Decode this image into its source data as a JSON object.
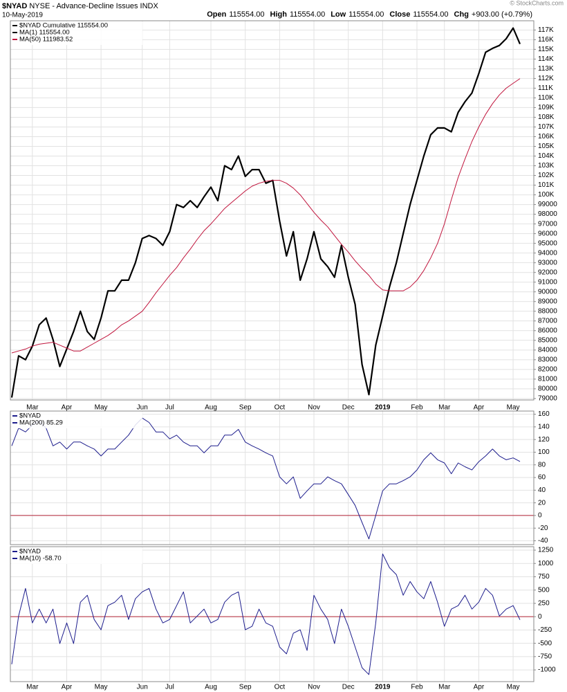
{
  "header": {
    "symbol": "$NYAD",
    "name": "NYSE - Advance-Decline Issues INDX",
    "date": "10-May-2019",
    "copyright": "© StockCharts.com",
    "quote": [
      {
        "label": "Open",
        "value": "115554.00"
      },
      {
        "label": "High",
        "value": "115554.00"
      },
      {
        "label": "Low",
        "value": "115554.00"
      },
      {
        "label": "Close",
        "value": "115554.00"
      },
      {
        "label": "Chg",
        "value": "+903.00 (+0.79%)"
      }
    ]
  },
  "chart_data": [
    {
      "type": "line",
      "title": "$NYAD Cumulative 115554.00",
      "categories": [
        null,
        null,
        null,
        "Mar",
        null,
        null,
        null,
        null,
        "Apr",
        null,
        null,
        null,
        null,
        "May",
        null,
        null,
        null,
        null,
        null,
        "Jun",
        null,
        null,
        null,
        "Jul",
        null,
        null,
        null,
        null,
        null,
        "Aug",
        null,
        null,
        null,
        null,
        "Sep",
        null,
        null,
        null,
        null,
        "Oct",
        null,
        null,
        null,
        null,
        "Nov",
        null,
        null,
        null,
        null,
        "Dec",
        null,
        null,
        null,
        null,
        "2019",
        null,
        null,
        null,
        null,
        "Feb",
        null,
        null,
        null,
        "Mar",
        null,
        null,
        null,
        null,
        "Apr",
        null,
        null,
        null,
        null,
        "May",
        null
      ],
      "series": [
        {
          "name": "MA(1) 115554.00",
          "color": "#000000",
          "values": [
            79100,
            83400,
            83000,
            84400,
            86600,
            87300,
            85100,
            82300,
            84100,
            85900,
            88000,
            85900,
            85100,
            87300,
            90100,
            90100,
            91200,
            91200,
            93000,
            95500,
            95800,
            95500,
            94800,
            96200,
            99000,
            98700,
            99400,
            98700,
            99800,
            100800,
            99400,
            103000,
            102600,
            104000,
            101900,
            102600,
            102600,
            101200,
            101500,
            97300,
            93700,
            96200,
            91200,
            93400,
            96200,
            93400,
            92600,
            91500,
            94800,
            91500,
            88700,
            82500,
            79400,
            84500,
            87500,
            90500,
            93000,
            96000,
            99000,
            101500,
            104000,
            106200,
            106900,
            106900,
            106500,
            108500,
            109600,
            110500,
            112500,
            114700,
            115100,
            115400,
            116100,
            117200,
            115554
          ]
        },
        {
          "name": "MA(50) 111983.52",
          "color": "#c0143c",
          "values": [
            83700,
            83900,
            84100,
            84400,
            84600,
            84700,
            84800,
            84500,
            84200,
            83900,
            83900,
            84300,
            84700,
            85100,
            85500,
            86000,
            86600,
            87000,
            87500,
            88000,
            88900,
            89900,
            90800,
            91700,
            92500,
            93500,
            94400,
            95400,
            96300,
            97000,
            97800,
            98600,
            99200,
            99800,
            100400,
            100900,
            101200,
            101400,
            101500,
            101500,
            101200,
            100700,
            100000,
            99100,
            98200,
            97400,
            96700,
            95800,
            94900,
            94100,
            93200,
            92400,
            91700,
            90800,
            90200,
            90100,
            90100,
            90100,
            90500,
            91200,
            92200,
            93500,
            95000,
            97000,
            99500,
            101800,
            103700,
            105500,
            107000,
            108300,
            109400,
            110300,
            111000,
            111500,
            111983.52
          ]
        }
      ],
      "ylim": [
        78850,
        117950
      ],
      "yticks": [
        79000,
        80000,
        81000,
        82000,
        83000,
        84000,
        85000,
        86000,
        87000,
        88000,
        89000,
        90000,
        91000,
        92000,
        93000,
        94000,
        95000,
        96000,
        97000,
        98000,
        99000,
        {
          "value": 100000,
          "label": "100K"
        },
        {
          "value": 101000,
          "label": "101K"
        },
        {
          "value": 102000,
          "label": "102K"
        },
        {
          "value": 103000,
          "label": "103K"
        },
        {
          "value": 104000,
          "label": "104K"
        },
        {
          "value": 105000,
          "label": "105K"
        },
        {
          "value": 106000,
          "label": "106K"
        },
        {
          "value": 107000,
          "label": "107K"
        },
        {
          "value": 108000,
          "label": "108K"
        },
        {
          "value": 109000,
          "label": "109K"
        },
        {
          "value": 110000,
          "label": "110K"
        },
        {
          "value": 111000,
          "label": "111K"
        },
        {
          "value": 112000,
          "label": "112K"
        },
        {
          "value": 113000,
          "label": "113K"
        },
        {
          "value": 114000,
          "label": "114K"
        },
        {
          "value": 115000,
          "label": "115K"
        },
        {
          "value": 116000,
          "label": "116K"
        },
        {
          "value": 117000,
          "label": "117K"
        }
      ],
      "grid": true
    },
    {
      "type": "line",
      "title": "$NYAD",
      "series": [
        {
          "name": "MA(200) 85.29",
          "color": "#1c1c8c",
          "values": [
            110,
            138,
            132,
            143,
            149,
            138,
            110,
            116,
            105,
            116,
            116,
            110,
            105,
            94,
            105,
            105,
            116,
            127,
            143,
            154,
            147,
            132,
            132,
            121,
            127,
            116,
            110,
            110,
            99,
            110,
            110,
            127,
            127,
            136,
            116,
            110,
            105,
            99,
            94,
            61,
            50,
            61,
            27,
            39,
            50,
            50,
            61,
            55,
            50,
            33,
            16,
            -11,
            -37,
            0,
            39,
            50,
            50,
            55,
            61,
            72,
            88,
            99,
            88,
            83,
            66,
            83,
            77,
            72,
            85,
            94,
            105,
            94,
            88,
            91,
            85.29
          ]
        }
      ],
      "ylim": [
        -46,
        165
      ],
      "yticks": [
        160,
        140,
        120,
        100,
        80,
        60,
        40,
        20,
        0,
        -20,
        -40
      ],
      "grid": true,
      "zero_line": true,
      "zero_line_color": "#b22234"
    },
    {
      "type": "line",
      "title": "$NYAD",
      "categories": [
        null,
        null,
        null,
        "Mar",
        null,
        null,
        null,
        null,
        "Apr",
        null,
        null,
        null,
        null,
        "May",
        null,
        null,
        null,
        null,
        null,
        "Jun",
        null,
        null,
        null,
        "Jul",
        null,
        null,
        null,
        null,
        null,
        "Aug",
        null,
        null,
        null,
        null,
        "Sep",
        null,
        null,
        null,
        null,
        "Oct",
        null,
        null,
        null,
        null,
        "Nov",
        null,
        null,
        null,
        null,
        "Dec",
        null,
        null,
        null,
        null,
        "2019",
        null,
        null,
        null,
        null,
        "Feb",
        null,
        null,
        null,
        "Mar",
        null,
        null,
        null,
        null,
        "Apr",
        null,
        null,
        null,
        null,
        "May",
        null
      ],
      "series": [
        {
          "name": "MA(10) -58.70",
          "color": "#1c1c8c",
          "values": [
            -894,
            13,
            531,
            -117,
            142,
            -117,
            142,
            -505,
            -117,
            -505,
            272,
            402,
            -52,
            -246,
            207,
            272,
            402,
            -52,
            337,
            466,
            531,
            142,
            -117,
            -52,
            207,
            466,
            -117,
            13,
            142,
            -117,
            -52,
            272,
            402,
            466,
            -246,
            -181,
            142,
            -117,
            -181,
            -570,
            -699,
            -311,
            -246,
            -635,
            402,
            142,
            -52,
            -505,
            142,
            -181,
            -570,
            -959,
            -1088,
            -117,
            1179,
            920,
            790,
            402,
            661,
            466,
            337,
            661,
            272,
            -181,
            142,
            207,
            402,
            142,
            272,
            531,
            402,
            13,
            142,
            207,
            -58.7
          ]
        }
      ],
      "ylim": [
        -1220,
        1315
      ],
      "yticks": [
        1250,
        1000,
        750,
        500,
        250,
        0,
        -250,
        -500,
        -750,
        -1000
      ],
      "grid": true,
      "zero_line": true,
      "zero_line_color": "#b22234"
    }
  ]
}
